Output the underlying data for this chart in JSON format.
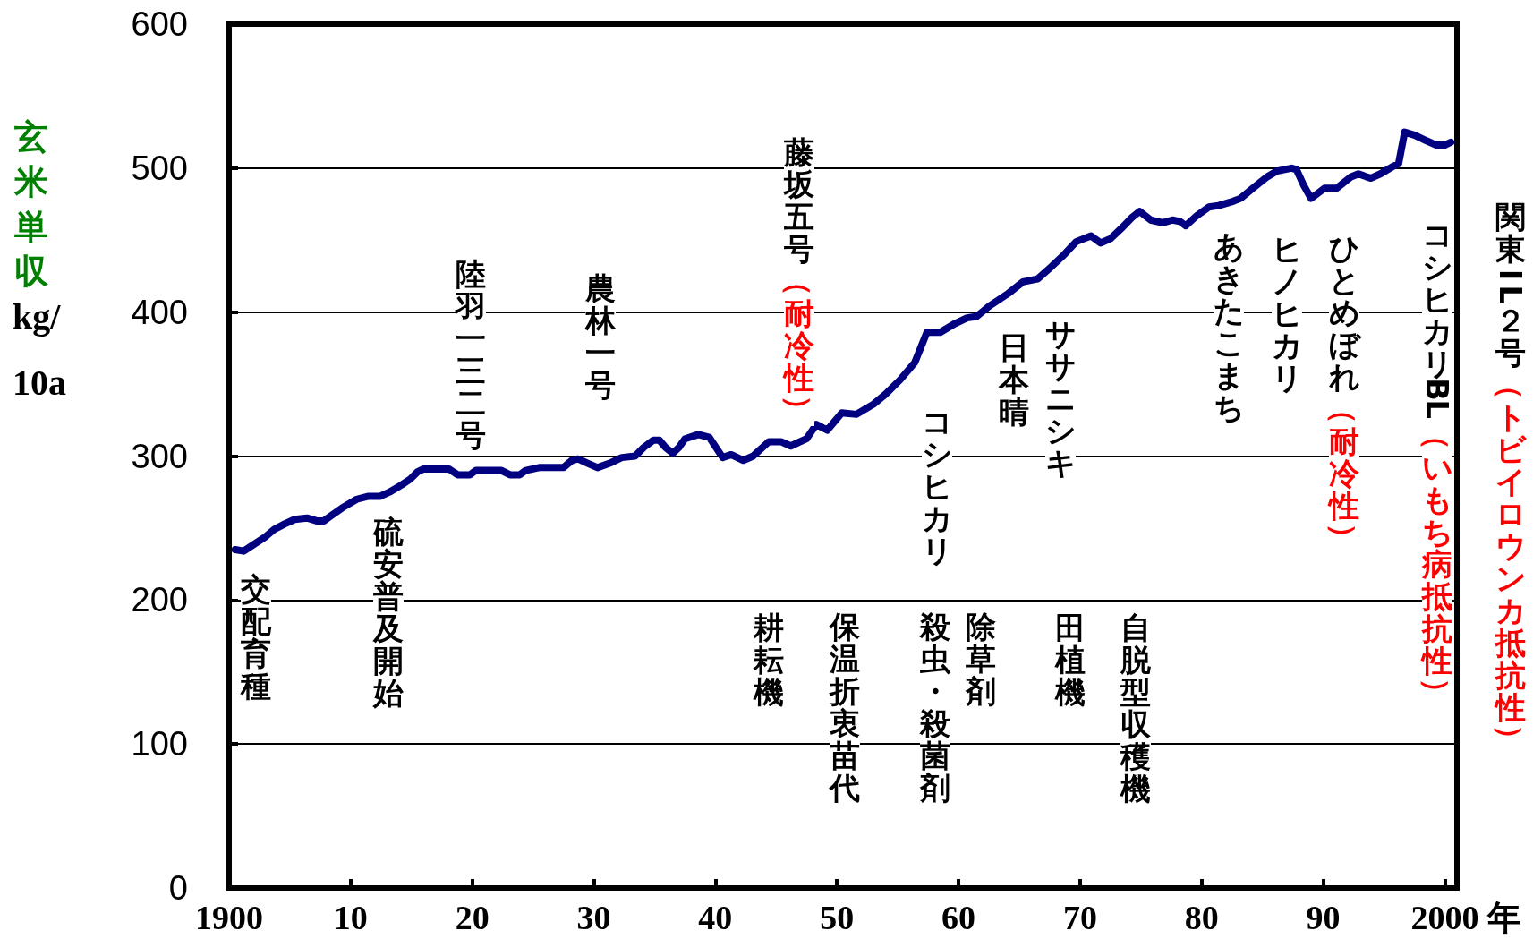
{
  "chart_data": {
    "type": "line",
    "xlabel": "年",
    "ylabel": "玄米単収kg/10a",
    "x": [
      1900.5,
      1901.2,
      1902.1,
      1903.0,
      1903.7,
      1904.6,
      1905.4,
      1906.4,
      1907.2,
      1907.8,
      1908.3,
      1909.3,
      1910.5,
      1911.4,
      1912.4,
      1913.2,
      1914.2,
      1914.9,
      1915.5,
      1916.0,
      1918.1,
      1918.8,
      1919.8,
      1920.3,
      1922.4,
      1923.1,
      1923.9,
      1924.4,
      1925.5,
      1927.5,
      1928.2,
      1928.7,
      1929.5,
      1930.3,
      1931.3,
      1932.3,
      1933.4,
      1934.1,
      1934.9,
      1935.4,
      1935.9,
      1936.5,
      1937.0,
      1937.5,
      1938.6,
      1939.5,
      1940.6,
      1941.3,
      1942.3,
      1943.1,
      1944.4,
      1945.4,
      1946.2,
      1947.5,
      1948.3,
      1949.2,
      1950.4,
      1951.6,
      1953.0,
      1954.0,
      1955.2,
      1956.4,
      1957.4,
      1958.5,
      1959.7,
      1960.7,
      1961.5,
      1962.5,
      1964.1,
      1965.3,
      1966.5,
      1967.7,
      1968.7,
      1969.7,
      1970.9,
      1971.7,
      1972.5,
      1973.5,
      1974.3,
      1974.9,
      1975.8,
      1976.8,
      1977.6,
      1978.2,
      1978.7,
      1979.6,
      1980.6,
      1981.4,
      1982.6,
      1983.2,
      1984.2,
      1985.4,
      1986.2,
      1987.4,
      1987.8,
      1988.4,
      1989.0,
      1990.1,
      1991.1,
      1992.3,
      1992.9,
      1993.9,
      1994.7,
      1995.7,
      1996.2,
      1996.7,
      1997.5,
      1998.5,
      1999.3,
      2000.0,
      2000.5
    ],
    "series": [
      {
        "color": "#000080",
        "values": [
          235,
          234,
          239,
          244,
          249,
          253,
          256,
          257,
          255,
          255,
          258,
          264,
          270,
          272,
          272,
          275,
          280,
          284,
          289,
          291,
          291,
          287,
          287,
          290,
          290,
          287,
          287,
          290,
          292,
          292,
          297,
          298,
          295,
          292,
          295,
          299,
          300,
          306,
          311,
          311,
          306,
          302,
          306,
          312,
          315,
          313,
          299,
          301,
          297,
          300,
          310,
          310,
          307,
          312,
          322,
          318,
          330,
          329,
          336,
          343,
          353,
          365,
          386,
          386,
          392,
          396,
          397,
          404,
          413,
          421,
          423,
          432,
          440,
          449,
          453,
          448,
          451,
          459,
          466,
          470,
          464,
          462,
          464,
          463,
          460,
          467,
          473,
          474,
          477,
          479,
          486,
          494,
          498,
          500,
          499,
          488,
          479,
          486,
          486,
          494,
          496,
          493,
          496,
          501,
          503,
          525,
          523,
          519,
          516,
          516,
          518
        ]
      }
    ],
    "xlim": [
      1900,
      2001
    ],
    "xticks": [
      1900,
      {
        "value": 1910,
        "label": "10"
      },
      {
        "value": 1920,
        "label": "20"
      },
      {
        "value": 1930,
        "label": "30"
      },
      {
        "value": 1940,
        "label": "40"
      },
      {
        "value": 1950,
        "label": "50"
      },
      {
        "value": 1960,
        "label": "60"
      },
      {
        "value": 1970,
        "label": "70"
      },
      {
        "value": 1980,
        "label": "80"
      },
      {
        "value": 1990,
        "label": "90"
      },
      2000
    ],
    "ylim": [
      0,
      600
    ],
    "yticks": [
      0,
      100,
      200,
      300,
      400,
      500,
      600
    ],
    "grid": "y",
    "marker": "none",
    "line_style": "solid",
    "annotations": [
      "交配育種",
      "硫安普及開始",
      "陸羽一三二号",
      "農林一号",
      "藤坂五号（耐冷性）",
      "耕耘機",
      "保温折衷苗代",
      "コシヒカリ",
      "殺虫・殺菌剤",
      "除草剤",
      "日本晴",
      "ササニシキ",
      "田植機",
      "自脱型収穫機",
      "あきたこまち",
      "ヒノヒカリ",
      "ひとめぼれ（耐冷性）",
      "コシヒカリBL（いもち病抵抗性）",
      "関東IL２号（トビイロウンカ抵抗性）"
    ]
  }
}
